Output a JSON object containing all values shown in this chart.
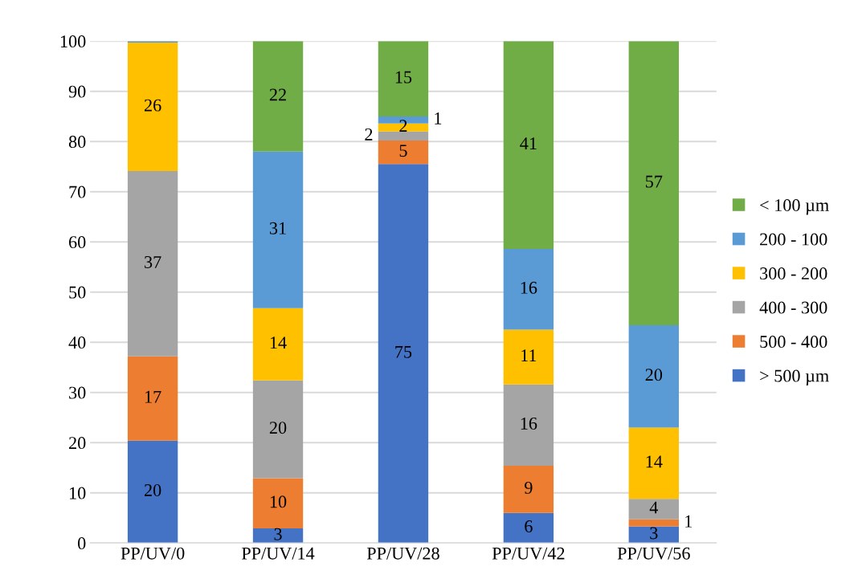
{
  "chart_data": {
    "type": "bar",
    "stacked": true,
    "categories": [
      "PP/UV/0",
      "PP/UV/14",
      "PP/UV/28",
      "PP/UV/42",
      "PP/UV/56"
    ],
    "series": [
      {
        "name": "> 500 µm",
        "color": "#4472c4",
        "values": [
          20.4,
          2.9,
          75.5,
          6,
          3.3
        ],
        "value_labels": [
          "20",
          "3",
          "75",
          "6",
          "3"
        ]
      },
      {
        "name": "500 - 400",
        "color": "#ed7d31",
        "values": [
          16.8,
          10,
          4.7,
          9.4,
          1.4
        ],
        "value_labels": [
          "17",
          "10",
          "5",
          "9",
          "1"
        ]
      },
      {
        "name": "400 - 300",
        "color": "#a5a5a5",
        "values": [
          36.9,
          19.5,
          1.8,
          16.2,
          4.1
        ],
        "value_labels": [
          "37",
          "20",
          "2",
          "16",
          "4"
        ]
      },
      {
        "name": "300 - 200",
        "color": "#ffc000",
        "values": [
          25.6,
          14.4,
          1.6,
          10.9,
          14.2
        ],
        "value_labels": [
          "26",
          "14",
          "2",
          "11",
          "14"
        ]
      },
      {
        "name": "200 - 100",
        "color": "#5b9bd5",
        "values": [
          0.3,
          31.2,
          1.4,
          16.1,
          20.4
        ],
        "value_labels": [
          null,
          "31",
          "1",
          "16",
          "20"
        ]
      },
      {
        "name": "< 100 µm",
        "color": "#70ad47",
        "values": [
          0,
          22,
          15,
          41.4,
          56.6
        ],
        "value_labels": [
          null,
          "22",
          "15",
          "41",
          "57"
        ]
      }
    ],
    "ylim": [
      0,
      100
    ],
    "yticks": [
      0,
      10,
      20,
      30,
      40,
      50,
      60,
      70,
      80,
      90,
      100
    ],
    "grid": "y",
    "legend": "right"
  }
}
